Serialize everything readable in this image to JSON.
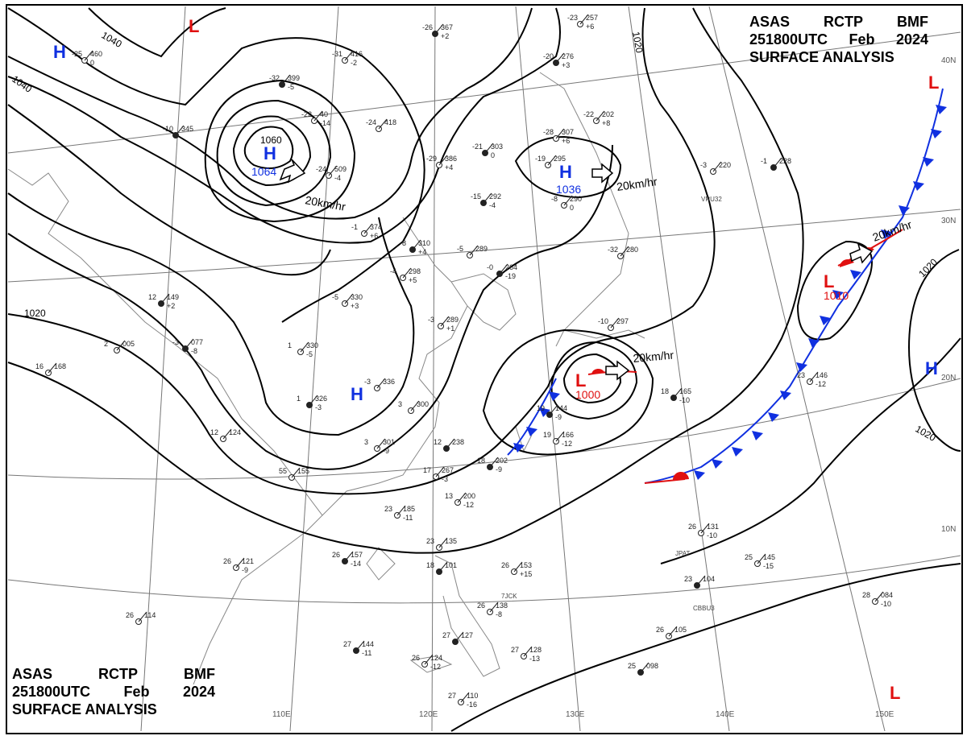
{
  "header": {
    "agency": "ASAS",
    "station": "RCTP",
    "code": "BMF",
    "datetime": "251800UTC",
    "month": "Feb",
    "year": "2024",
    "product": "SURFACE ANALYSIS"
  },
  "isobars": [
    "1040",
    "1040",
    "1060",
    "1020",
    "1020",
    "1020",
    "1020"
  ],
  "pressure_systems": [
    {
      "type": "H",
      "value": "1064",
      "motion": "20km/hr"
    },
    {
      "type": "H",
      "value": "1036",
      "motion": "20km/hr"
    },
    {
      "type": "L",
      "value": "1000",
      "motion": "20km/hr"
    },
    {
      "type": "L",
      "value": "1010",
      "motion": "20km/hr"
    },
    {
      "type": "H",
      "value": ""
    },
    {
      "type": "H",
      "value": ""
    },
    {
      "type": "H",
      "value": ""
    },
    {
      "type": "L",
      "value": ""
    },
    {
      "type": "L",
      "value": ""
    },
    {
      "type": "L",
      "value": ""
    }
  ],
  "longitude_labels": [
    "110E",
    "120E",
    "130E",
    "140E",
    "150E"
  ],
  "latitude_labels": [
    "40N",
    "30N",
    "20N",
    "10N"
  ],
  "stations": [
    [
      "-26",
      "367",
      "+2"
    ],
    [
      "-25",
      "460",
      "0"
    ],
    [
      "-31",
      "416",
      "-2"
    ],
    [
      "-32",
      "399",
      "-5"
    ],
    [
      "-22",
      "40",
      "-14"
    ],
    [
      "-24",
      "418",
      ""
    ],
    [
      "-10",
      "345",
      ""
    ],
    [
      "-24",
      "509",
      "-4"
    ],
    [
      "-28",
      "307",
      "+6"
    ],
    [
      "-21",
      "303",
      "0"
    ],
    [
      "-19",
      "295",
      ""
    ],
    [
      "-29",
      "386",
      "+4"
    ],
    [
      "-15",
      "292",
      "-4"
    ],
    [
      "-8",
      "290",
      "0"
    ],
    [
      "-1",
      "374",
      "+6"
    ],
    [
      "-8",
      "310",
      "+4"
    ],
    [
      "-5",
      "289",
      ""
    ],
    [
      "-4",
      "298",
      "+5"
    ],
    [
      "-0",
      "264",
      "-19"
    ],
    [
      "-5",
      "330",
      "+3"
    ],
    [
      "-3",
      "289",
      "+1"
    ],
    [
      "-3",
      "077",
      "-8"
    ],
    [
      "1",
      "330",
      "-5"
    ],
    [
      "-3",
      "336",
      ""
    ],
    [
      "1",
      "326",
      "-3"
    ],
    [
      "3",
      "300",
      ""
    ],
    [
      "3",
      "301",
      "-9"
    ],
    [
      "12",
      "238",
      ""
    ],
    [
      "17",
      "267",
      "-3"
    ],
    [
      "13",
      "200",
      "-12"
    ],
    [
      "18",
      "202",
      "-9"
    ],
    [
      "16",
      "168",
      ""
    ],
    [
      "2",
      "005",
      ""
    ],
    [
      "12",
      "149",
      "+2"
    ],
    [
      "12",
      "124",
      ""
    ],
    [
      "23",
      "185",
      "-11"
    ],
    [
      "26",
      "157",
      "-14"
    ],
    [
      "26",
      "121",
      "-9"
    ],
    [
      "26",
      "114",
      ""
    ],
    [
      "27",
      "144",
      "-11"
    ],
    [
      "26",
      "124",
      "-12"
    ],
    [
      "23",
      "135",
      ""
    ],
    [
      "18",
      "101",
      ""
    ],
    [
      "26",
      "153",
      "+15"
    ],
    [
      "26",
      "138",
      "-8"
    ],
    [
      "27",
      "127",
      ""
    ],
    [
      "27",
      "128",
      "-13"
    ],
    [
      "27",
      "110",
      "-16"
    ],
    [
      "18",
      "165",
      "-10"
    ],
    [
      "26",
      "131",
      "-10"
    ],
    [
      "25",
      "145",
      "-15"
    ],
    [
      "23",
      "104",
      ""
    ],
    [
      "26",
      "105",
      ""
    ],
    [
      "28",
      "084",
      "-10"
    ],
    [
      "25",
      "098",
      ""
    ],
    [
      "23",
      "146",
      "-12"
    ],
    [
      "-3",
      "220",
      ""
    ],
    [
      "-1",
      "228",
      ""
    ],
    [
      "-23",
      "257",
      "+6"
    ],
    [
      "-22",
      "202",
      "+8"
    ],
    [
      "-20",
      "276",
      "+3"
    ],
    [
      "-32",
      "280",
      ""
    ],
    [
      "-10",
      "297",
      ""
    ],
    [
      "19",
      "144",
      "-9"
    ],
    [
      "19",
      "166",
      "-12"
    ],
    [
      "55",
      "155",
      ""
    ]
  ],
  "station_ids": [
    "VRU32",
    "CBBU3",
    "JPAT",
    "7JCK"
  ]
}
